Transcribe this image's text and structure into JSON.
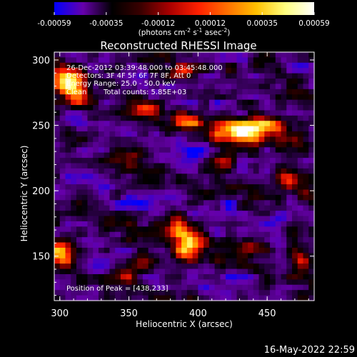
{
  "chart_data": {
    "type": "heatmap",
    "title": "Reconstructed RHESSI Image",
    "xlabel": "Heliocentric X (arcsec)",
    "ylabel": "Heliocentric Y (arcsec)",
    "xlim": [
      296,
      484
    ],
    "ylim": [
      116,
      306
    ],
    "x_ticks": [
      300,
      350,
      400,
      450
    ],
    "y_ticks": [
      150,
      200,
      250,
      300
    ],
    "colorbar": {
      "ticks": [
        "-0.00059",
        "-0.00035",
        "-0.00012",
        "0.00012",
        "0.00035",
        "0.00059"
      ],
      "range": [
        -0.00059,
        0.00059
      ],
      "units_main": "(photons cm",
      "units_exp1": "-2",
      "units_mid": " s",
      "units_exp2": "-1",
      "units_end": " asec",
      "units_exp3": "-2",
      "units_close": ")",
      "colormap": [
        "#0000ff",
        "#6600aa",
        "#000000",
        "#3a0000",
        "#aa0000",
        "#ff2000",
        "#ff7000",
        "#ffc000",
        "#ffff80",
        "#ffffff"
      ]
    },
    "annotations": {
      "time_range": "26-Dec-2012 03:39:48.000 to 03:45:48.000",
      "detectors": "Detectors: 3F 4F 5F 6F 7F 8F, Att 0",
      "energy": "Energy Range: 25.0 - 50.0 keV",
      "method": "Clean",
      "total_counts": "Total counts: 5.85E+03",
      "peak": "Position of Peak = [438,233]"
    },
    "peak_position": [
      438,
      233
    ],
    "blobs": [
      {
        "x": 430,
        "y": 245,
        "sx": 14,
        "sy": 6,
        "amp": 1.0
      },
      {
        "x": 395,
        "y": 253,
        "sx": 9,
        "sy": 5,
        "amp": 0.55
      },
      {
        "x": 393,
        "y": 158,
        "sx": 7,
        "sy": 9,
        "amp": 0.95
      },
      {
        "x": 383,
        "y": 173,
        "sx": 6,
        "sy": 6,
        "amp": 0.6
      },
      {
        "x": 305,
        "y": 284,
        "sx": 9,
        "sy": 9,
        "amp": 0.8
      },
      {
        "x": 312,
        "y": 273,
        "sx": 7,
        "sy": 6,
        "amp": 0.45
      },
      {
        "x": 300,
        "y": 153,
        "sx": 6,
        "sy": 8,
        "amp": 0.85
      },
      {
        "x": 345,
        "y": 135,
        "sx": 7,
        "sy": 5,
        "amp": 0.45
      },
      {
        "x": 362,
        "y": 263,
        "sx": 6,
        "sy": 4,
        "amp": 0.45
      },
      {
        "x": 388,
        "y": 290,
        "sx": 7,
        "sy": 5,
        "amp": 0.5
      },
      {
        "x": 465,
        "y": 208,
        "sx": 6,
        "sy": 6,
        "amp": 0.55
      },
      {
        "x": 478,
        "y": 197,
        "sx": 5,
        "sy": 6,
        "amp": 0.45
      },
      {
        "x": 440,
        "y": 158,
        "sx": 7,
        "sy": 4,
        "amp": 0.55
      },
      {
        "x": 475,
        "y": 150,
        "sx": 6,
        "sy": 7,
        "amp": 0.55
      },
      {
        "x": 352,
        "y": 227,
        "sx": 5,
        "sy": 5,
        "amp": 0.4
      },
      {
        "x": 418,
        "y": 220,
        "sx": 6,
        "sy": 5,
        "amp": 0.4
      },
      {
        "x": 335,
        "y": 175,
        "sx": 6,
        "sy": 5,
        "amp": 0.35
      },
      {
        "x": 450,
        "y": 300,
        "sx": 8,
        "sy": 4,
        "amp": 0.4
      },
      {
        "x": 450,
        "y": 250,
        "sx": 12,
        "sy": 5,
        "amp": 0.6
      },
      {
        "x": 470,
        "y": 238,
        "sx": 6,
        "sy": 5,
        "amp": 0.5
      },
      {
        "x": 360,
        "y": 145,
        "sx": 6,
        "sy": 5,
        "amp": 0.4
      },
      {
        "x": 420,
        "y": 190,
        "sx": 8,
        "sy": 3,
        "amp": -0.45
      },
      {
        "x": 355,
        "y": 190,
        "sx": 10,
        "sy": 3,
        "amp": -0.4
      },
      {
        "x": 320,
        "y": 230,
        "sx": 8,
        "sy": 4,
        "amp": -0.35
      },
      {
        "x": 460,
        "y": 178,
        "sx": 7,
        "sy": 4,
        "amp": -0.35
      },
      {
        "x": 400,
        "y": 230,
        "sx": 6,
        "sy": 4,
        "amp": -0.3
      },
      {
        "x": 330,
        "y": 140,
        "sx": 6,
        "sy": 3,
        "amp": -0.3
      },
      {
        "x": 430,
        "y": 135,
        "sx": 7,
        "sy": 3,
        "amp": -0.3
      }
    ]
  },
  "footer": {
    "timestamp": "16-May-2022 22:59"
  }
}
